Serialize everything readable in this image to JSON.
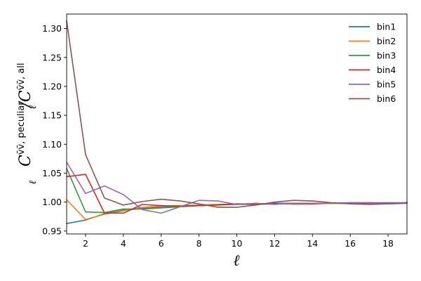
{
  "chart_data": {
    "type": "line",
    "title": "",
    "xlabel": "ℓ",
    "ylabel": {
      "symbol": "C",
      "numerator_sub": "ℓ",
      "numerator_sup": "v̄v̄, peculiar",
      "separator": "/",
      "denominator_sub": "ℓ",
      "denominator_sup": "v̄v̄, all"
    },
    "xlim": [
      1,
      19
    ],
    "ylim": [
      0.945,
      1.325
    ],
    "xticks": [
      2,
      4,
      6,
      8,
      10,
      12,
      14,
      16,
      18
    ],
    "xtick_labels": [
      "2",
      "4",
      "6",
      "8",
      "10",
      "12",
      "14",
      "16",
      "18"
    ],
    "yticks": [
      0.95,
      1.0,
      1.05,
      1.1,
      1.15,
      1.2,
      1.25,
      1.3
    ],
    "ytick_labels": [
      "0.95",
      "1.00",
      "1.05",
      "1.10",
      "1.15",
      "1.20",
      "1.25",
      "1.30"
    ],
    "grid": false,
    "legend_position": "top-right",
    "x": [
      1,
      2,
      3,
      4,
      5,
      6,
      7,
      8,
      9,
      10,
      11,
      12,
      13,
      14,
      15,
      16,
      17,
      18,
      19
    ],
    "series": [
      {
        "name": "bin1",
        "color": "#1f77b4",
        "values": [
          0.963,
          0.969,
          0.98,
          0.986,
          0.989,
          0.991,
          0.992,
          0.995,
          0.996,
          0.997,
          0.997,
          0.998,
          0.998,
          0.998,
          0.998,
          0.999,
          0.999,
          0.999,
          0.999
        ]
      },
      {
        "name": "bin2",
        "color": "#ff7f0e",
        "values": [
          1.004,
          0.97,
          0.979,
          0.985,
          0.991,
          0.993,
          0.994,
          0.995,
          0.996,
          0.996,
          0.997,
          0.997,
          0.998,
          0.998,
          0.998,
          0.998,
          0.998,
          0.998,
          0.999
        ]
      },
      {
        "name": "bin3",
        "color": "#2ca02c",
        "values": [
          1.058,
          0.983,
          0.982,
          0.988,
          0.988,
          0.99,
          0.992,
          0.994,
          0.995,
          0.996,
          0.996,
          0.997,
          0.997,
          0.998,
          0.998,
          0.998,
          0.998,
          0.998,
          0.999
        ]
      },
      {
        "name": "bin4",
        "color": "#d62728",
        "values": [
          1.044,
          1.048,
          0.981,
          0.981,
          0.996,
          0.994,
          0.993,
          0.994,
          0.995,
          0.997,
          0.996,
          0.997,
          0.997,
          0.997,
          0.998,
          0.998,
          0.998,
          0.998,
          0.999
        ]
      },
      {
        "name": "bin5",
        "color": "#9467bd",
        "values": [
          1.069,
          1.015,
          1.028,
          1.013,
          0.987,
          0.981,
          0.992,
          1.003,
          1.002,
          0.996,
          0.998,
          0.996,
          0.998,
          0.998,
          0.998,
          0.999,
          0.999,
          0.998,
          0.999
        ]
      },
      {
        "name": "bin6",
        "color": "#8c564b",
        "values": [
          1.313,
          1.082,
          1.007,
          0.995,
          1.001,
          1.005,
          1.002,
          0.997,
          0.991,
          0.991,
          0.995,
          1.0,
          1.003,
          1.002,
          0.999,
          0.997,
          0.996,
          0.997,
          0.998
        ]
      }
    ]
  }
}
